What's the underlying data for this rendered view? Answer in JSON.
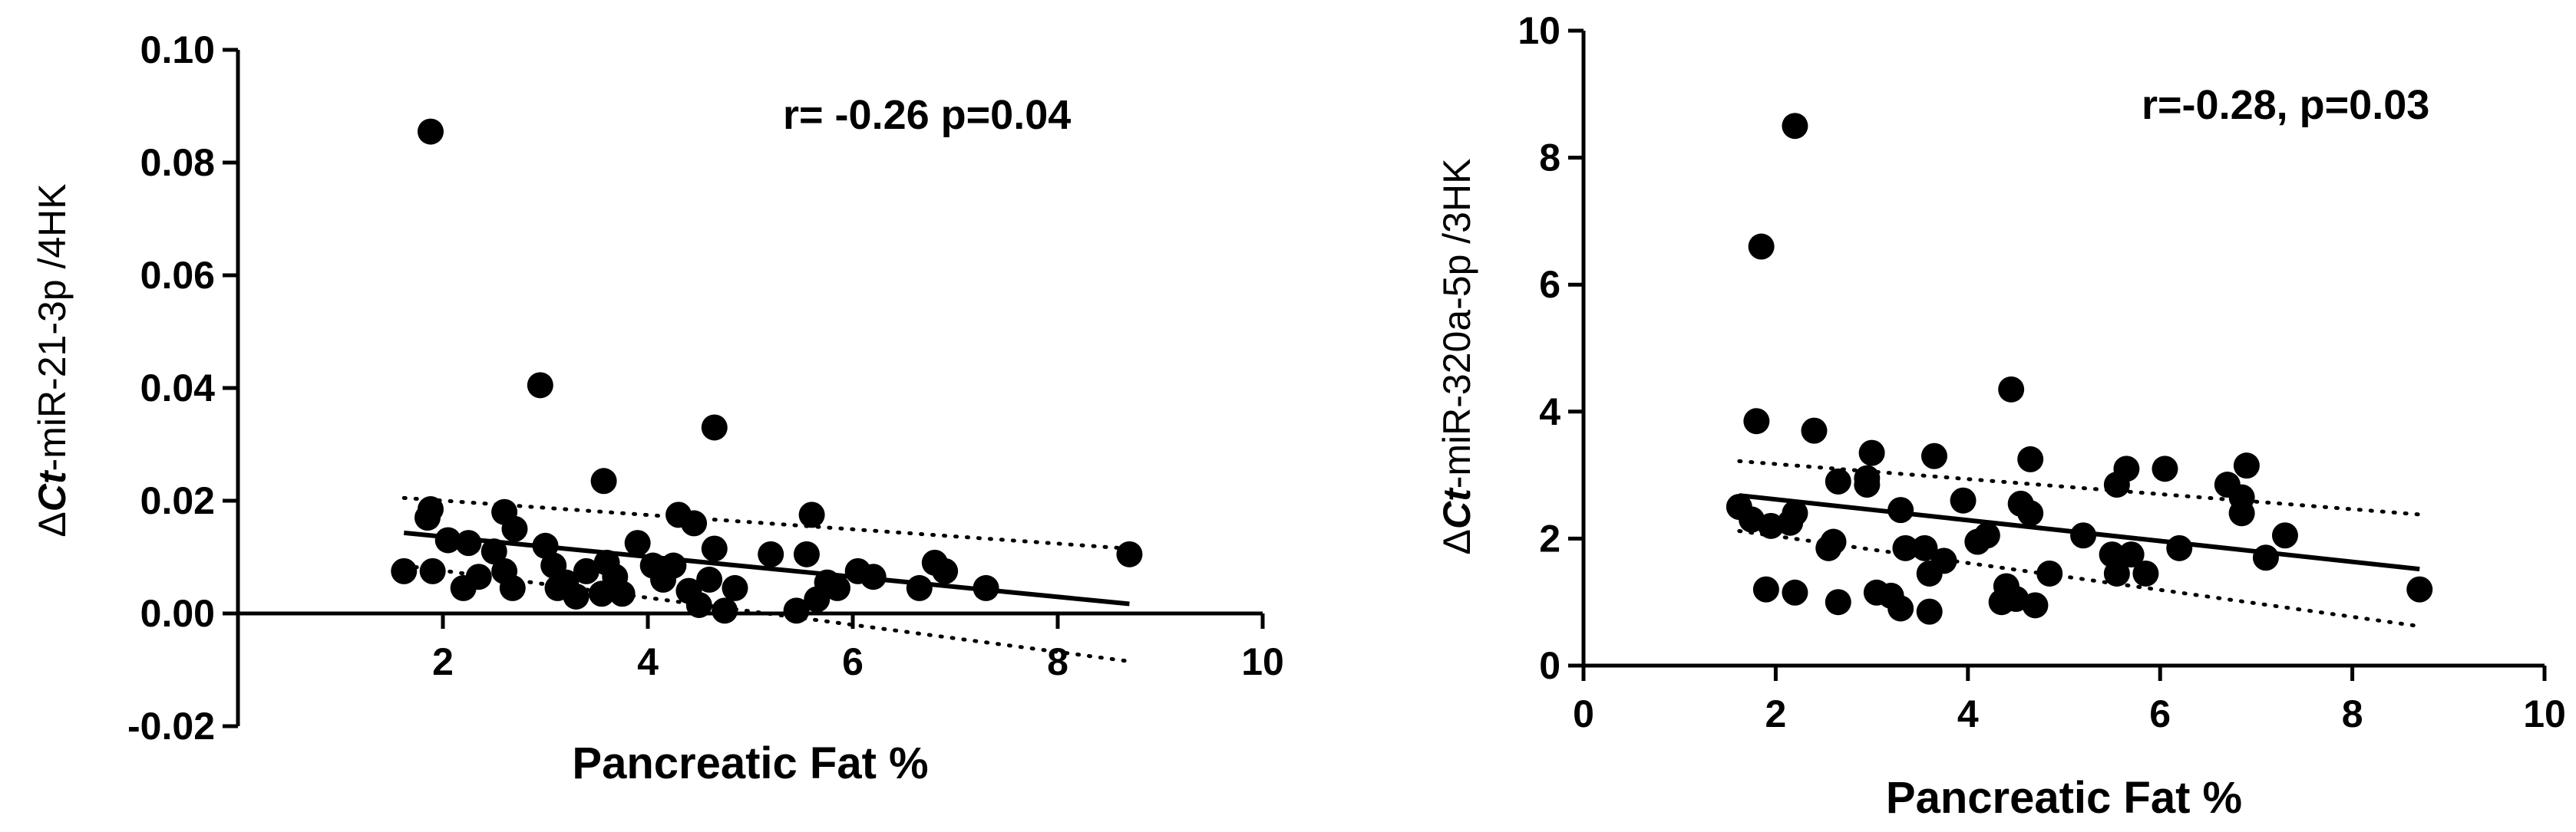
{
  "chart_data": [
    {
      "type": "scatter",
      "title": "",
      "xlabel": "Pancreatic Fat %",
      "ylabel_prefix": "Δ",
      "ylabel_italic": "Ct",
      "ylabel_suffix": "-miR-21-3p /4HK",
      "annotation": "r= -0.26 p=0.04",
      "xlim": [
        0,
        10
      ],
      "ylim": [
        -0.02,
        0.1
      ],
      "x_ticks": [
        2,
        4,
        6,
        8,
        10
      ],
      "x_tick_labels": [
        "2",
        "4",
        "6",
        "8",
        "10"
      ],
      "y_ticks": [
        -0.02,
        0.0,
        0.02,
        0.04,
        0.06,
        0.08,
        0.1
      ],
      "y_tick_labels": [
        "-0.02",
        "0.00",
        "0.02",
        "0.04",
        "0.06",
        "0.08",
        "0.10"
      ],
      "x_axis_at_y": 0,
      "grid": false,
      "points": [
        [
          1.88,
          0.0855
        ],
        [
          2.95,
          0.0405
        ],
        [
          4.65,
          0.033
        ],
        [
          3.57,
          0.0235
        ],
        [
          1.88,
          0.0185
        ],
        [
          1.85,
          0.017
        ],
        [
          2.6,
          0.018
        ],
        [
          2.7,
          0.015
        ],
        [
          4.3,
          0.0175
        ],
        [
          4.45,
          0.016
        ],
        [
          5.6,
          0.0175
        ],
        [
          3.0,
          0.012
        ],
        [
          2.05,
          0.013
        ],
        [
          2.25,
          0.0125
        ],
        [
          1.62,
          0.0075
        ],
        [
          1.9,
          0.0075
        ],
        [
          2.5,
          0.011
        ],
        [
          2.35,
          0.0065
        ],
        [
          2.6,
          0.0075
        ],
        [
          2.2,
          0.0045
        ],
        [
          2.68,
          0.0045
        ],
        [
          3.08,
          0.0085
        ],
        [
          3.2,
          0.0055
        ],
        [
          3.4,
          0.0075
        ],
        [
          3.3,
          0.003
        ],
        [
          3.12,
          0.0045
        ],
        [
          3.6,
          0.009
        ],
        [
          3.68,
          0.0065
        ],
        [
          3.55,
          0.0035
        ],
        [
          3.75,
          0.0035
        ],
        [
          3.9,
          0.0125
        ],
        [
          4.05,
          0.0085
        ],
        [
          4.15,
          0.006
        ],
        [
          4.25,
          0.0085
        ],
        [
          4.4,
          0.004
        ],
        [
          4.6,
          0.006
        ],
        [
          4.65,
          0.0115
        ],
        [
          4.5,
          0.0015
        ],
        [
          4.75,
          0.0005
        ],
        [
          4.85,
          0.0045
        ],
        [
          5.2,
          0.0105
        ],
        [
          5.55,
          0.0105
        ],
        [
          5.45,
          0.0005
        ],
        [
          5.65,
          0.0025
        ],
        [
          5.75,
          0.0055
        ],
        [
          5.85,
          0.0045
        ],
        [
          6.05,
          0.0075
        ],
        [
          6.2,
          0.0065
        ],
        [
          6.65,
          0.0045
        ],
        [
          6.8,
          0.009
        ],
        [
          6.9,
          0.0075
        ],
        [
          7.3,
          0.0045
        ],
        [
          8.7,
          0.0105
        ]
      ],
      "fit_line": {
        "x": [
          1.62,
          8.7
        ],
        "y": [
          0.0143,
          0.0017
        ]
      },
      "ci_upper": {
        "x": [
          1.62,
          8.7
        ],
        "y": [
          0.0205,
          0.0115
        ]
      },
      "ci_lower": {
        "x": [
          1.62,
          8.7
        ],
        "y": [
          0.0085,
          -0.0085
        ]
      }
    },
    {
      "type": "scatter",
      "title": "",
      "xlabel": "Pancreatic Fat %",
      "ylabel_prefix": "Δ",
      "ylabel_italic": "Ct",
      "ylabel_suffix": "-miR-320a-5p /3HK",
      "annotation": "r=-0.28, p=0.03",
      "xlim": [
        0,
        10
      ],
      "ylim": [
        0,
        10
      ],
      "x_ticks": [
        0,
        2,
        4,
        6,
        8,
        10
      ],
      "x_tick_labels": [
        "0",
        "2",
        "4",
        "6",
        "8",
        "10"
      ],
      "y_ticks": [
        0,
        2,
        4,
        6,
        8,
        10
      ],
      "y_tick_labels": [
        "0",
        "2",
        "4",
        "6",
        "8",
        "10"
      ],
      "x_axis_at_y": 0,
      "grid": false,
      "points": [
        [
          2.2,
          8.5
        ],
        [
          1.85,
          6.6
        ],
        [
          4.45,
          4.35
        ],
        [
          1.8,
          3.85
        ],
        [
          2.4,
          3.7
        ],
        [
          3.0,
          3.35
        ],
        [
          3.65,
          3.3
        ],
        [
          4.65,
          3.25
        ],
        [
          5.65,
          3.1
        ],
        [
          6.05,
          3.1
        ],
        [
          6.9,
          3.15
        ],
        [
          2.65,
          2.9
        ],
        [
          2.95,
          2.95
        ],
        [
          2.95,
          2.85
        ],
        [
          5.55,
          2.85
        ],
        [
          6.7,
          2.85
        ],
        [
          3.95,
          2.6
        ],
        [
          4.55,
          2.55
        ],
        [
          6.85,
          2.65
        ],
        [
          6.85,
          2.4
        ],
        [
          1.62,
          2.5
        ],
        [
          1.75,
          2.3
        ],
        [
          1.95,
          2.2
        ],
        [
          2.2,
          2.4
        ],
        [
          2.15,
          2.25
        ],
        [
          3.3,
          2.45
        ],
        [
          4.65,
          2.4
        ],
        [
          4.2,
          2.05
        ],
        [
          4.1,
          1.95
        ],
        [
          5.2,
          2.05
        ],
        [
          7.3,
          2.05
        ],
        [
          2.6,
          1.95
        ],
        [
          2.55,
          1.85
        ],
        [
          3.35,
          1.85
        ],
        [
          3.55,
          1.85
        ],
        [
          3.75,
          1.65
        ],
        [
          3.6,
          1.45
        ],
        [
          5.5,
          1.75
        ],
        [
          5.7,
          1.75
        ],
        [
          6.2,
          1.85
        ],
        [
          7.1,
          1.7
        ],
        [
          4.85,
          1.45
        ],
        [
          5.55,
          1.45
        ],
        [
          5.85,
          1.45
        ],
        [
          1.9,
          1.2
        ],
        [
          2.2,
          1.15
        ],
        [
          3.05,
          1.15
        ],
        [
          3.2,
          1.1
        ],
        [
          4.4,
          1.25
        ],
        [
          4.5,
          1.05
        ],
        [
          4.35,
          1.0
        ],
        [
          2.65,
          1.0
        ],
        [
          3.3,
          0.9
        ],
        [
          3.6,
          0.85
        ],
        [
          4.7,
          0.95
        ],
        [
          8.7,
          1.2
        ]
      ],
      "fit_line": {
        "x": [
          1.62,
          8.7
        ],
        "y": [
          2.68,
          1.52
        ]
      },
      "ci_upper": {
        "x": [
          1.62,
          8.7
        ],
        "y": [
          3.22,
          2.38
        ]
      },
      "ci_lower": {
        "x": [
          1.62,
          8.7
        ],
        "y": [
          2.12,
          0.62
        ]
      }
    }
  ]
}
